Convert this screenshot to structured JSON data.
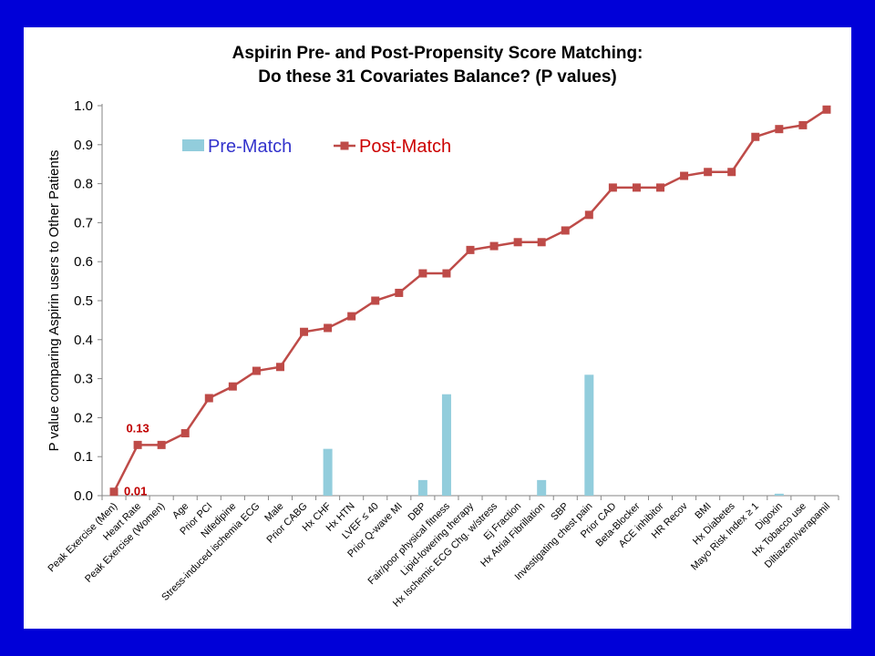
{
  "chart_data": {
    "type": "bar+line",
    "title": "Aspirin Pre- and Post-Propensity Score Matching:",
    "subtitle": "Do these 31 Covariates Balance? (P values)",
    "ylabel": "P value comparing Aspirin users to Other Patients",
    "xlabel": "",
    "ylim": [
      0,
      1.0
    ],
    "yticks": [
      "0.0",
      "0.1",
      "0.2",
      "0.3",
      "0.4",
      "0.5",
      "0.6",
      "0.7",
      "0.8",
      "0.9",
      "1.0"
    ],
    "grid": false,
    "legend_position": "top-left",
    "categories": [
      "Peak Exercise (Men)",
      "Heart Rate",
      "Peak Exercise (Women)",
      "Age",
      "Prior PCI",
      "Nifedipine",
      "Stress-induced ischemia ECG",
      "Male",
      "Prior CABG",
      "Hx CHF",
      "Hx HTN",
      "LVEF ≤ 40",
      "Prior Q-wave MI",
      "DBP",
      "Fair/poor physical fitness",
      "Lipid-lowering therapy",
      "Hx Ischemic ECG Chg. w/stress",
      "Ej Fraction",
      "Hx Atrial Fibrillation",
      "SBP",
      "Investigating chest pain",
      "Prior CAD",
      "Beta-Blocker",
      "ACE inhibitor",
      "HR Recov",
      "BMI",
      "Hx Diabetes",
      "Mayo Risk Index ≥ 1",
      "Digoxin",
      "Hx Tobacco use",
      "Diltiazem/verapamil"
    ],
    "series": [
      {
        "name": "Pre-Match",
        "type": "bar",
        "color": "#92cddc",
        "values": [
          0,
          0,
          0,
          0,
          0,
          0,
          0,
          0,
          0,
          0.12,
          0,
          0,
          0,
          0.04,
          0.26,
          0,
          0,
          0,
          0.04,
          0,
          0.31,
          0,
          0,
          0,
          0,
          0,
          0,
          0,
          0.005,
          0,
          0
        ]
      },
      {
        "name": "Post-Match",
        "type": "line",
        "color": "#be4b48",
        "values": [
          0.01,
          0.13,
          0.13,
          0.16,
          0.25,
          0.28,
          0.32,
          0.33,
          0.42,
          0.43,
          0.46,
          0.5,
          0.52,
          0.57,
          0.57,
          0.63,
          0.64,
          0.65,
          0.65,
          0.68,
          0.72,
          0.79,
          0.79,
          0.79,
          0.82,
          0.83,
          0.83,
          0.92,
          0.94,
          0.95,
          0.99
        ]
      }
    ],
    "annotations": [
      {
        "text": "0.13",
        "category_index": 1,
        "value": 0.13,
        "color": "#c00000"
      },
      {
        "text": "0.01",
        "category_index": 0,
        "value": 0.01,
        "color": "#c00000"
      }
    ],
    "legend_text_colors": {
      "Pre-Match": "#3333cc",
      "Post-Match": "#cc0000"
    }
  }
}
